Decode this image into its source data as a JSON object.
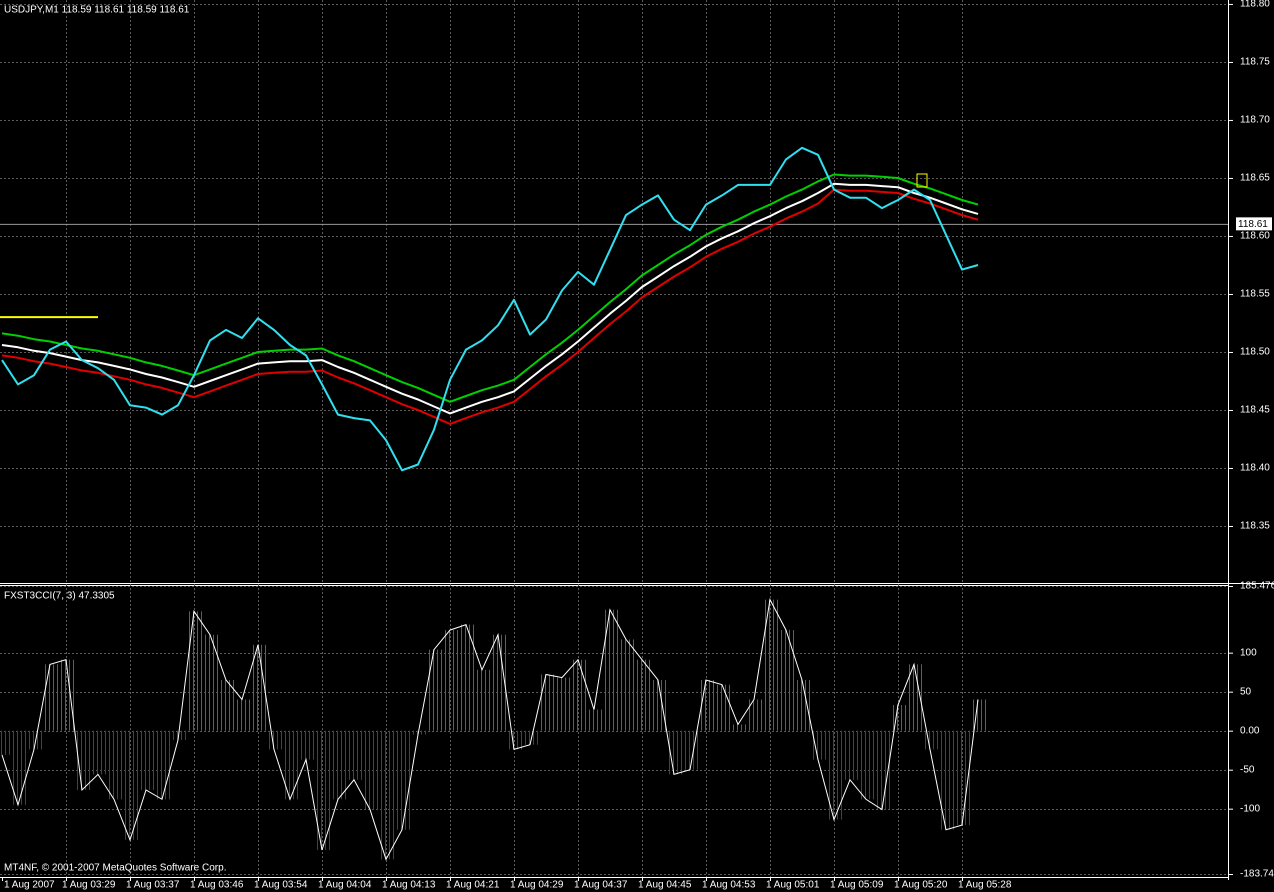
{
  "chart_data": [
    {
      "type": "line",
      "title": "USDJPY,M1  118.59 118.61 118.59 118.61",
      "categories": [
        "1 Aug 2007",
        null,
        null,
        null,
        "1 Aug 03:29",
        null,
        null,
        null,
        "1 Aug 03:37",
        null,
        null,
        null,
        "1 Aug 03:46",
        null,
        null,
        null,
        "1 Aug 03:54",
        null,
        null,
        null,
        "1 Aug 04:04",
        null,
        null,
        null,
        "1 Aug 04:13",
        null,
        null,
        null,
        "1 Aug 04:21",
        null,
        null,
        null,
        "1 Aug 04:29",
        null,
        null,
        null,
        "1 Aug 04:37",
        null,
        null,
        null,
        "1 Aug 04:45",
        null,
        null,
        null,
        "1 Aug 04:53",
        null,
        null,
        null,
        "1 Aug 05:01",
        null,
        null,
        null,
        "1 Aug 05:09",
        null,
        null,
        null,
        "1 Aug 05:20",
        null,
        null,
        null,
        "1 Aug 05:28",
        null
      ],
      "series": [
        {
          "color": "#00d000",
          "values": [
            118.516,
            118.514,
            118.511,
            118.509,
            118.506,
            118.503,
            118.501,
            118.498,
            118.495,
            118.491,
            118.488,
            118.484,
            118.48,
            118.485,
            118.49,
            118.495,
            118.5,
            118.501,
            118.502,
            118.502,
            118.503,
            118.497,
            118.492,
            118.486,
            118.48,
            118.474,
            118.469,
            118.463,
            118.457,
            118.462,
            118.467,
            118.471,
            118.476,
            118.487,
            118.498,
            118.508,
            118.519,
            118.531,
            118.543,
            118.554,
            118.566,
            118.575,
            118.584,
            118.592,
            118.601,
            118.608,
            118.614,
            118.621,
            118.627,
            118.634,
            118.64,
            118.647,
            118.653,
            118.652,
            118.652,
            118.651,
            118.65,
            118.645,
            118.641,
            118.636,
            118.631,
            118.627
          ]
        },
        {
          "color": "#ffffff",
          "values": [
            118.506,
            118.504,
            118.501,
            118.499,
            118.496,
            118.493,
            118.491,
            118.488,
            118.485,
            118.481,
            118.478,
            118.474,
            118.47,
            118.475,
            118.48,
            118.485,
            118.49,
            118.491,
            118.492,
            118.492,
            118.493,
            118.487,
            118.482,
            118.476,
            118.47,
            118.464,
            118.459,
            118.453,
            118.447,
            118.452,
            118.457,
            118.461,
            118.466,
            118.477,
            118.488,
            118.498,
            118.509,
            118.521,
            118.533,
            118.544,
            118.556,
            118.565,
            118.574,
            118.582,
            118.591,
            118.598,
            118.604,
            118.611,
            118.617,
            118.624,
            118.63,
            118.637,
            118.645,
            118.644,
            118.644,
            118.643,
            118.642,
            118.637,
            118.633,
            118.628,
            118.623,
            118.619
          ]
        },
        {
          "color": "#e00000",
          "values": [
            118.497,
            118.495,
            118.492,
            118.49,
            118.487,
            118.484,
            118.482,
            118.479,
            118.476,
            118.472,
            118.469,
            118.465,
            118.461,
            118.466,
            118.471,
            118.476,
            118.481,
            118.482,
            118.483,
            118.483,
            118.484,
            118.478,
            118.473,
            118.467,
            118.461,
            118.455,
            118.45,
            118.444,
            118.438,
            118.443,
            118.448,
            118.452,
            118.457,
            118.468,
            118.479,
            118.489,
            118.5,
            118.512,
            118.524,
            118.535,
            118.547,
            118.556,
            118.565,
            118.573,
            118.582,
            118.589,
            118.595,
            118.602,
            118.608,
            118.615,
            118.621,
            118.628,
            118.64,
            118.639,
            118.639,
            118.638,
            118.637,
            118.632,
            118.628,
            118.623,
            118.618,
            118.614
          ]
        },
        {
          "color": "#30e0f0",
          "values": [
            118.493,
            118.472,
            118.48,
            118.502,
            118.509,
            118.493,
            118.486,
            118.476,
            118.454,
            118.452,
            118.446,
            118.454,
            118.48,
            118.51,
            118.519,
            118.512,
            118.529,
            118.519,
            118.506,
            118.497,
            118.472,
            118.446,
            118.443,
            118.441,
            118.424,
            118.398,
            118.403,
            118.433,
            118.476,
            118.502,
            118.51,
            118.523,
            118.545,
            118.515,
            118.528,
            118.553,
            118.569,
            118.558,
            118.588,
            118.618,
            118.627,
            118.635,
            118.614,
            118.605,
            118.627,
            118.635,
            118.644,
            118.644,
            118.644,
            118.666,
            118.676,
            118.67,
            118.64,
            118.633,
            118.633,
            118.624,
            118.631,
            118.64,
            118.631,
            118.601,
            118.571,
            118.575
          ]
        }
      ],
      "ylim": [
        118.3017,
        118.8034
      ],
      "yticks": [
        {
          "value": 118.8,
          "label": "118.80"
        },
        118.75,
        {
          "value": 118.7,
          "label": "118.70"
        },
        118.65,
        {
          "value": 118.6,
          "label": "118.60"
        },
        118.55,
        {
          "value": 118.5,
          "label": "118.50"
        },
        118.45,
        {
          "value": 118.4,
          "label": "118.40"
        },
        118.35
      ],
      "grid": true,
      "last_price": 118.61,
      "level": 118.53,
      "level_color": "#ffff00"
    },
    {
      "type": "bar",
      "title": "FXST3CCI(7, 3) 47.3305",
      "values": [
        -31,
        -95,
        -24,
        85,
        91,
        -76,
        -56,
        -88,
        -140,
        -76,
        -88,
        -12,
        153,
        123,
        65,
        40,
        110,
        -24,
        -88,
        -37,
        -153,
        -88,
        -63,
        -101,
        -165,
        -127,
        -5,
        104,
        129,
        136,
        78,
        123,
        -24,
        -18,
        72,
        68,
        91,
        27,
        155,
        117,
        91,
        65,
        -56,
        -50,
        65,
        59,
        8,
        40,
        168,
        129,
        65,
        -37,
        -114,
        -63,
        -88,
        -101,
        33,
        85,
        -24,
        -127,
        -121,
        40
      ],
      "positive_color": "#00a000",
      "negative_color": "#e00000",
      "line_color": "#ffffff",
      "ylim": [
        -183.744,
        185.476
      ],
      "yticks": [
        185.476,
        100,
        50,
        {
          "value": 0,
          "label": "0.00"
        },
        -50,
        -100,
        -183.744
      ],
      "grid": true,
      "footer": "MT4NF, © 2001-2007 MetaQuotes Software Corp."
    }
  ]
}
